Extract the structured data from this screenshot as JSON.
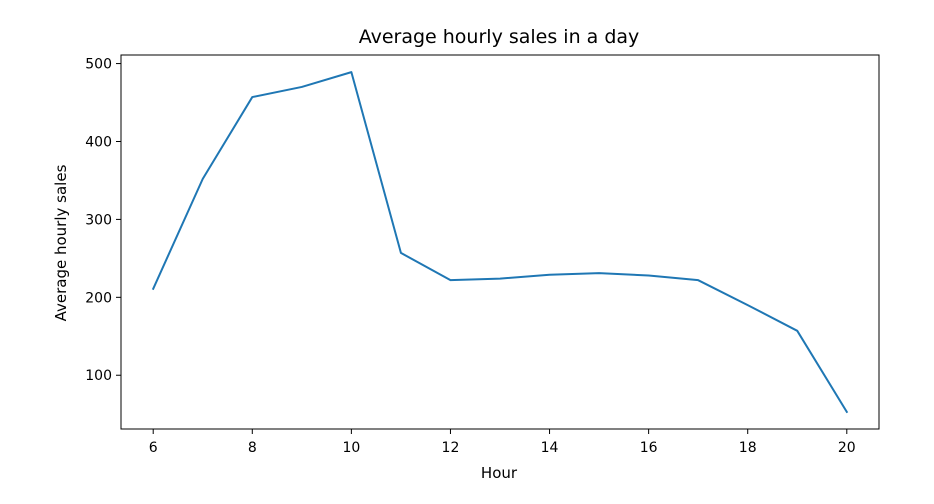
{
  "chart_data": {
    "type": "line",
    "title": "Average hourly sales in a day",
    "xlabel": "Hour",
    "ylabel": "Average hourly sales",
    "x": [
      6,
      7,
      8,
      9,
      10,
      11,
      12,
      13,
      14,
      15,
      16,
      17,
      18,
      19,
      20
    ],
    "series": [
      {
        "values": [
          211,
          352,
          457,
          470,
          489,
          257,
          222,
          224,
          229,
          231,
          228,
          222,
          190,
          157,
          53
        ]
      }
    ],
    "xlim": [
      5.35,
      20.65
    ],
    "ylim": [
      31,
      511
    ],
    "xticks": [
      6,
      8,
      10,
      12,
      14,
      16,
      18,
      20
    ],
    "yticks": [
      100,
      200,
      300,
      400,
      500
    ],
    "grid": false,
    "line_color": "#1f77b4"
  }
}
